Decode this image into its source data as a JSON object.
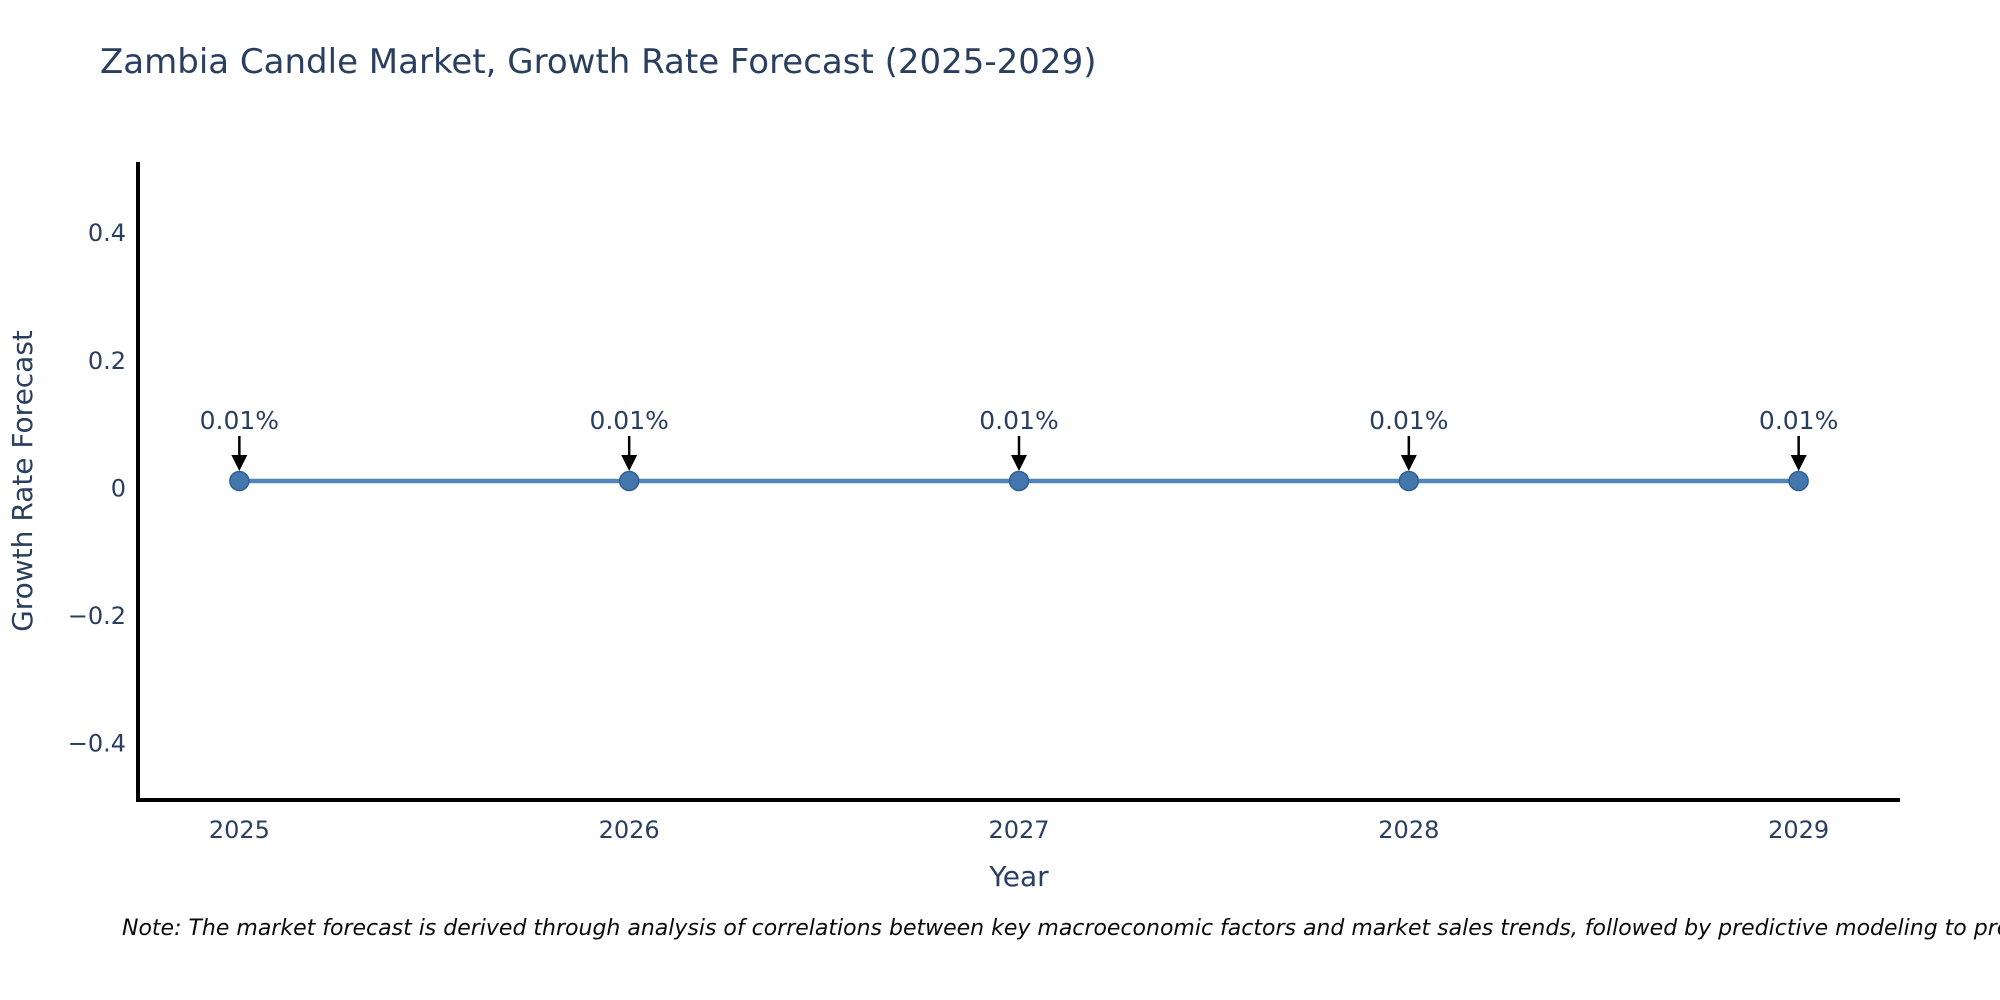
{
  "chart_data": {
    "type": "line",
    "title": "Zambia Candle Market, Growth Rate Forecast (2025-2029)",
    "xlabel": "Year",
    "ylabel": "Growth Rate Forecast",
    "x": [
      2025,
      2026,
      2027,
      2028,
      2029
    ],
    "values": [
      0.01,
      0.01,
      0.01,
      0.01,
      0.01
    ],
    "point_labels": [
      "0.01%",
      "0.01%",
      "0.01%",
      "0.01%",
      "0.01%"
    ],
    "xtick_labels": [
      "2025",
      "2026",
      "2027",
      "2028",
      "2029"
    ],
    "yticks": [
      0.4,
      0.2,
      0,
      -0.2,
      -0.4
    ],
    "ytick_labels": [
      "0.4",
      "0.2",
      "0",
      "−0.2",
      "−0.4"
    ],
    "xlim": [
      2024.74,
      2029.26
    ],
    "ylim": [
      -0.49,
      0.51
    ],
    "grid": false,
    "legend": "none",
    "spines": [
      "left",
      "bottom"
    ],
    "colors": {
      "line": "#5184b8",
      "marker_fill": "#4377ad",
      "marker_edge": "#2f5f94",
      "axis_spine": "#000000",
      "text": "#2a3f5f",
      "annotation_arrow": "#000000"
    }
  },
  "footnote": "Note: The market forecast is derived through analysis of correlations between key macroeconomic factors and market sales trends, followed by predictive modeling to project future sa"
}
